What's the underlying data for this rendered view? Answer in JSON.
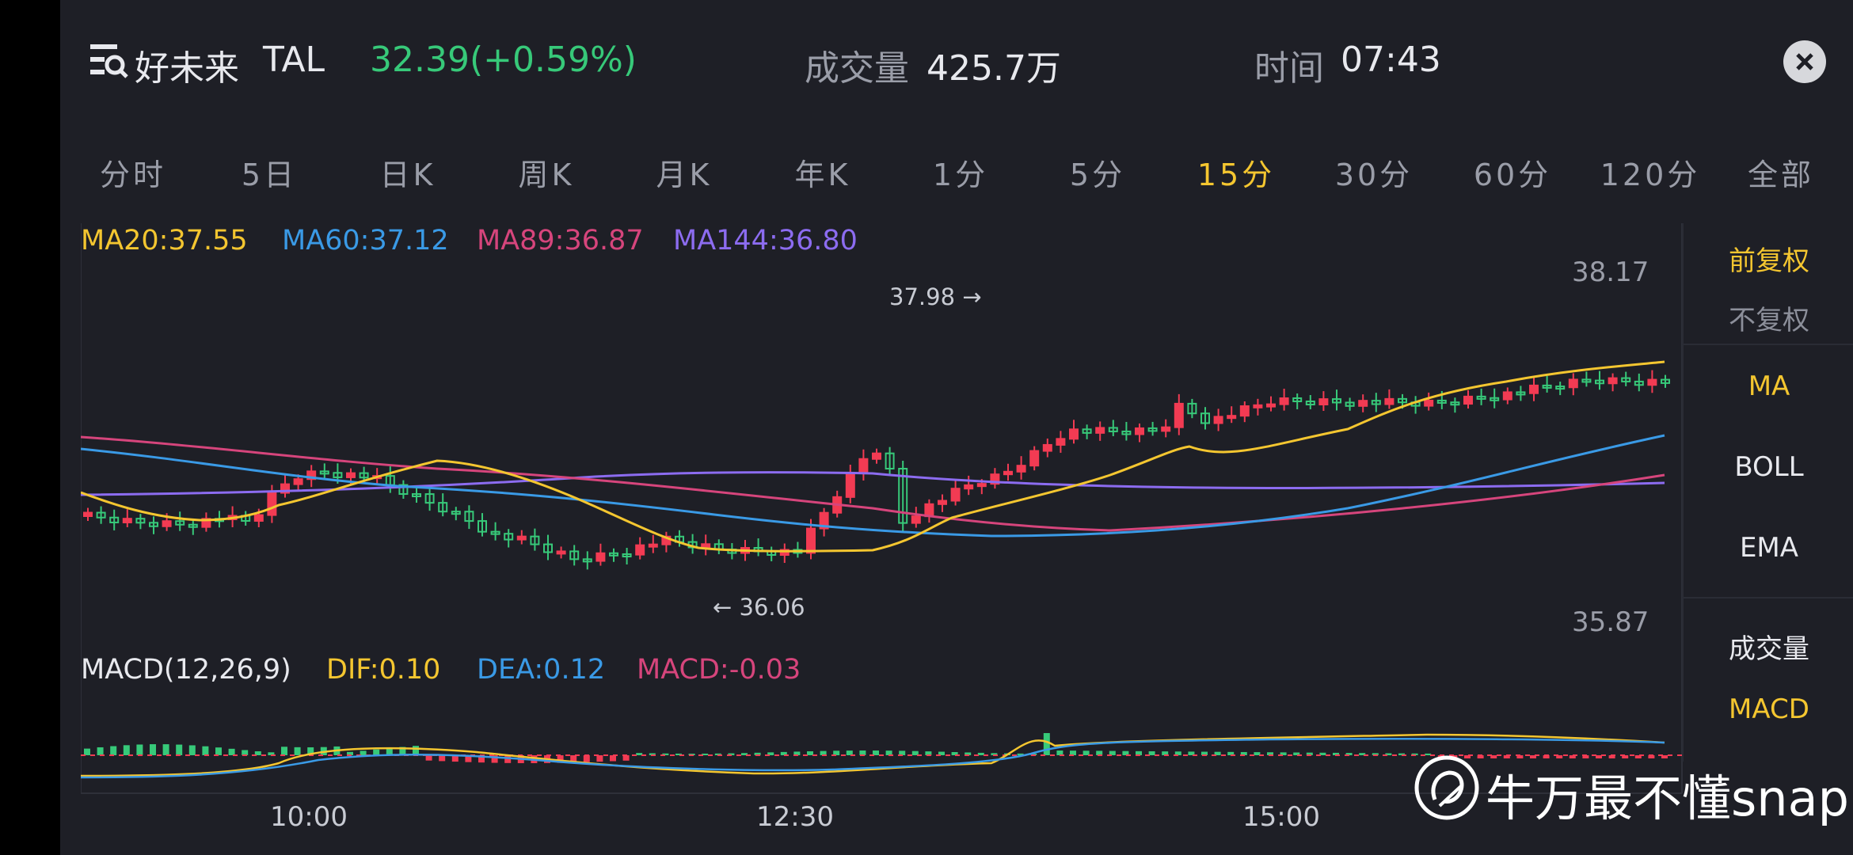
{
  "header": {
    "name": "好未来",
    "code": "TAL",
    "price": "32.39(+0.59%)",
    "volume_label": "成交量",
    "volume": "425.7万",
    "time_label": "时间",
    "time": "07:43"
  },
  "tabs": [
    "分时",
    "5日",
    "日K",
    "周K",
    "月K",
    "年K",
    "1分",
    "5分",
    "15分",
    "30分",
    "60分",
    "120分",
    "全部"
  ],
  "active_tab": "15分",
  "ma_legend": {
    "ma20": "MA20:37.55",
    "ma60": "MA60:37.12",
    "ma89": "MA89:36.87",
    "ma144": "MA144:36.80"
  },
  "macd_legend": {
    "name": "MACD(12,26,9)",
    "dif": "DIF:0.10",
    "dea": "DEA:0.12",
    "macd": "MACD:-0.03"
  },
  "price_axis": {
    "high": "38.17",
    "low": "35.87"
  },
  "extremes": {
    "high_label": "37.98 →",
    "low_label": "← 36.06"
  },
  "x_axis": [
    "10:00",
    "12:30",
    "15:00"
  ],
  "right_panel": {
    "adj_forward": "前复权",
    "adj_none": "不复权",
    "ma": "MA",
    "boll": "BOLL",
    "ema": "EMA",
    "volume": "成交量",
    "macd": "MACD"
  },
  "watermark": "牛万最不懂snap",
  "colors": {
    "up": "#f23b53",
    "down": "#37c979",
    "ma20": "#f4c630",
    "ma60": "#3a9ae6",
    "ma89": "#d6457c",
    "ma144": "#8c6cf0",
    "active": "#f4c630",
    "bg": "#1e1f26"
  }
}
